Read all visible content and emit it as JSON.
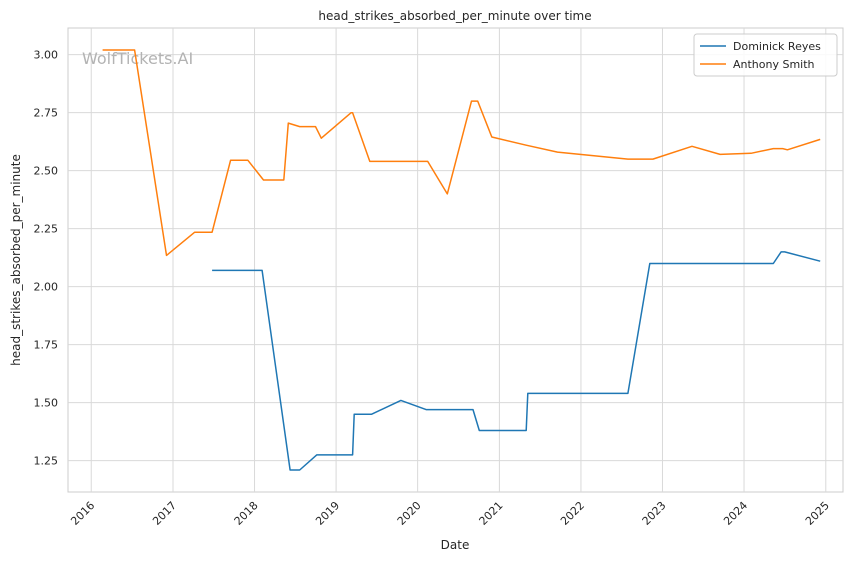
{
  "chart_data": {
    "type": "line",
    "title": "head_strikes_absorbed_per_minute over time",
    "xlabel": "Date",
    "ylabel": "head_strikes_absorbed_per_minute",
    "watermark": "WolfTickets.AI",
    "x_ticks": [
      "2016",
      "2017",
      "2018",
      "2019",
      "2020",
      "2021",
      "2022",
      "2023",
      "2024",
      "2025"
    ],
    "y_ticks": [
      "1.25",
      "1.50",
      "1.75",
      "2.00",
      "2.25",
      "2.50",
      "2.75",
      "3.00"
    ],
    "xlim": [
      "2015-09-19",
      "2025-03-19"
    ],
    "ylim": [
      1.115,
      3.115
    ],
    "grid": true,
    "legend_position": "top-right",
    "series": [
      {
        "name": "Dominick Reyes",
        "color": "#1f77b4",
        "points": [
          [
            "2017-06-25",
            2.07
          ],
          [
            "2018-02-04",
            2.07
          ],
          [
            "2018-06-09",
            1.21
          ],
          [
            "2018-07-22",
            1.21
          ],
          [
            "2018-10-06",
            1.275
          ],
          [
            "2019-03-16",
            1.275
          ],
          [
            "2019-03-23",
            1.45
          ],
          [
            "2019-06-08",
            1.45
          ],
          [
            "2019-10-18",
            1.51
          ],
          [
            "2020-02-08",
            1.47
          ],
          [
            "2020-09-05",
            1.47
          ],
          [
            "2020-10-03",
            1.38
          ],
          [
            "2021-05-01",
            1.38
          ],
          [
            "2021-05-08",
            1.54
          ],
          [
            "2022-07-30",
            1.54
          ],
          [
            "2022-11-05",
            2.1
          ],
          [
            "2024-05-11",
            2.1
          ],
          [
            "2024-06-15",
            2.15
          ],
          [
            "2024-07-01",
            2.15
          ],
          [
            "2024-12-07",
            2.11
          ]
        ]
      },
      {
        "name": "Anthony Smith",
        "color": "#ff7f0e",
        "points": [
          [
            "2016-02-21",
            3.02
          ],
          [
            "2016-07-13",
            3.02
          ],
          [
            "2016-12-03",
            2.135
          ],
          [
            "2017-04-08",
            2.235
          ],
          [
            "2017-06-25",
            2.235
          ],
          [
            "2017-09-16",
            2.545
          ],
          [
            "2017-12-02",
            2.545
          ],
          [
            "2018-02-10",
            2.46
          ],
          [
            "2018-05-12",
            2.46
          ],
          [
            "2018-06-01",
            2.705
          ],
          [
            "2018-07-22",
            2.69
          ],
          [
            "2018-10-01",
            2.69
          ],
          [
            "2018-10-27",
            2.64
          ],
          [
            "2019-03-09",
            2.75
          ],
          [
            "2019-03-16",
            2.75
          ],
          [
            "2019-06-01",
            2.54
          ],
          [
            "2020-02-15",
            2.54
          ],
          [
            "2020-05-13",
            2.4
          ],
          [
            "2020-08-29",
            2.8
          ],
          [
            "2020-09-26",
            2.8
          ],
          [
            "2020-11-28",
            2.645
          ],
          [
            "2021-05-01",
            2.61
          ],
          [
            "2021-09-18",
            2.58
          ],
          [
            "2022-07-30",
            2.55
          ],
          [
            "2022-11-19",
            2.55
          ],
          [
            "2023-05-13",
            2.605
          ],
          [
            "2023-09-16",
            2.57
          ],
          [
            "2024-02-01",
            2.575
          ],
          [
            "2024-05-11",
            2.595
          ],
          [
            "2024-06-22",
            2.595
          ],
          [
            "2024-07-13",
            2.59
          ],
          [
            "2024-12-07",
            2.635
          ]
        ]
      }
    ]
  }
}
